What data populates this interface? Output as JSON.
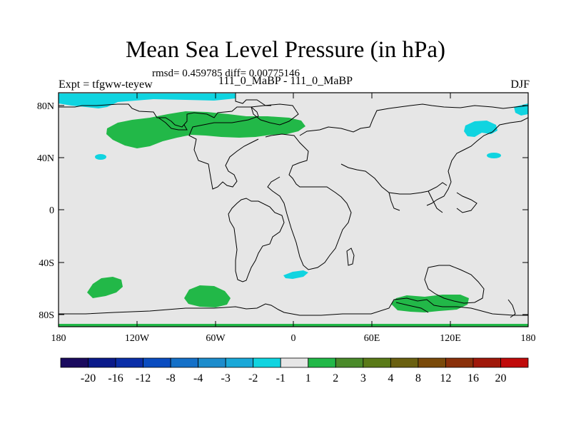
{
  "title": "Mean Sea Level Pressure (in hPa)",
  "stats_line": "rmsd= 0.459785 diff= 0.00775146",
  "left_label": "Expt = tfgww-teyew",
  "center_label": "111_0_MaBP - 111_0_MaBP",
  "right_label": "DJF",
  "y_ticks": [
    "80N",
    "40N",
    "0",
    "40S",
    "80S"
  ],
  "x_ticks": [
    "180",
    "120W",
    "60W",
    "0",
    "60E",
    "120E",
    "180"
  ],
  "colorbar": {
    "colors": [
      "#1a0a5e",
      "#0a1a8a",
      "#0a2ea8",
      "#0a4cc0",
      "#1470c8",
      "#1c8ccc",
      "#1aa8d8",
      "#10d4e0",
      "#e6e6e6",
      "#22b848",
      "#4a8a2a",
      "#5a7a18",
      "#6a6010",
      "#7a4a0a",
      "#8a300a",
      "#a0180a",
      "#c00a0a"
    ],
    "labels": [
      "-20",
      "-16",
      "-12",
      "-8",
      "-4",
      "-3",
      "-2",
      "-1",
      "1",
      "2",
      "3",
      "4",
      "8",
      "12",
      "16",
      "20"
    ]
  },
  "colors": {
    "background_field": "#e6e6e6",
    "positive": "#22b848",
    "negative": "#10d4e0",
    "coast": "#000000"
  }
}
